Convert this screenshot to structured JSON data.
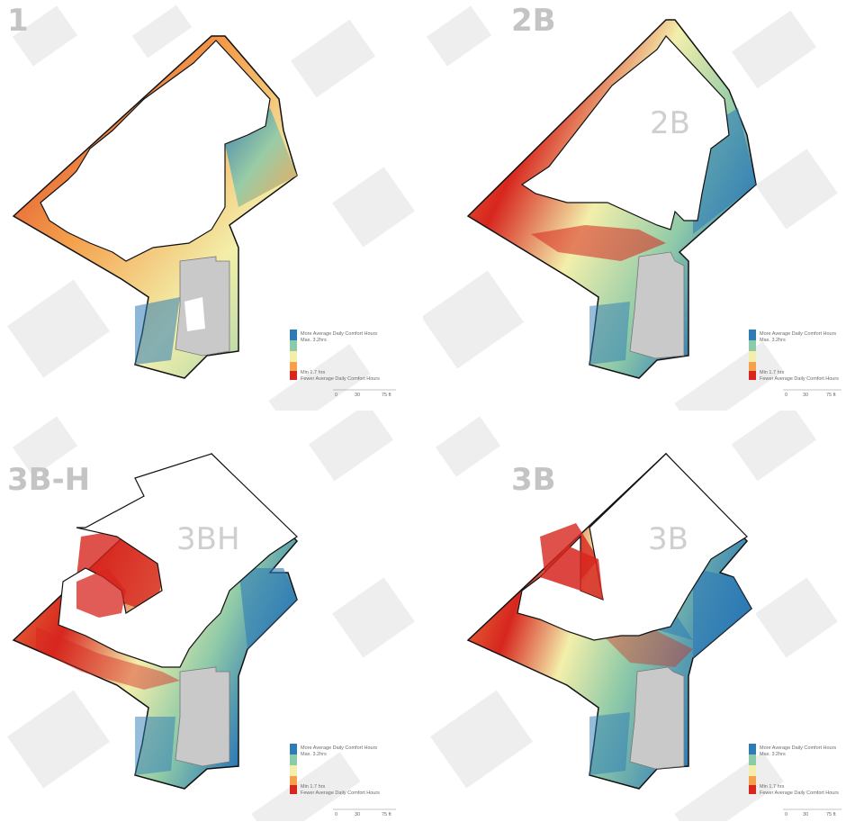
{
  "panels": [
    {
      "id": "1",
      "title": "1",
      "building_label": ""
    },
    {
      "id": "2B",
      "title": "2B",
      "building_label": "2B"
    },
    {
      "id": "3B-H",
      "title": "3B-H",
      "building_label": "3BH"
    },
    {
      "id": "3B",
      "title": "3B",
      "building_label": "3B"
    }
  ],
  "legend": {
    "max_caption": "More Average Daily Comfort Hours",
    "max_value": "Max. 3.2hrs",
    "min_value": "Min 1.7 hrs",
    "min_caption": "Fewer Average Daily Comfort Hours",
    "scale_ticks": [
      "0",
      "30",
      "75 ft"
    ],
    "colors": [
      "#2e7bb6",
      "#8fcaa8",
      "#f3efab",
      "#f4a04c",
      "#d7261e"
    ]
  }
}
